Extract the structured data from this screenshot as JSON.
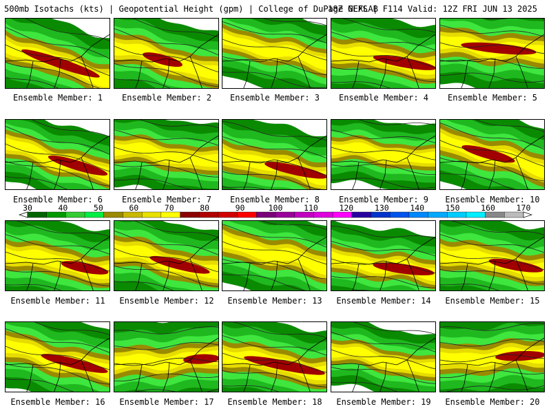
{
  "header": {
    "left": "500mb Isotachs (kts) | Geopotential Height (gpm) | College of DuPage NEXLAB",
    "right": "18Z GEFS | F114 Valid: 12Z FRI JUN 13 2025"
  },
  "panels": [
    {
      "label": "Ensemble Member: 1"
    },
    {
      "label": "Ensemble Member: 2"
    },
    {
      "label": "Ensemble Member: 3"
    },
    {
      "label": "Ensemble Member: 4"
    },
    {
      "label": "Ensemble Member: 5"
    },
    {
      "label": "Ensemble Member: 6"
    },
    {
      "label": "Ensemble Member: 7"
    },
    {
      "label": "Ensemble Member: 8"
    },
    {
      "label": "Ensemble Member: 9"
    },
    {
      "label": "Ensemble Member: 10"
    },
    {
      "label": "Ensemble Member: 11"
    },
    {
      "label": "Ensemble Member: 12"
    },
    {
      "label": "Ensemble Member: 13"
    },
    {
      "label": "Ensemble Member: 14"
    },
    {
      "label": "Ensemble Member: 15"
    },
    {
      "label": "Ensemble Member: 16"
    },
    {
      "label": "Ensemble Member: 17"
    },
    {
      "label": "Ensemble Member: 18"
    },
    {
      "label": "Ensemble Member: 19"
    },
    {
      "label": "Ensemble Member: 20"
    }
  ],
  "colorbar": {
    "ticks": [
      "30",
      "40",
      "50",
      "60",
      "70",
      "80",
      "90",
      "100",
      "110",
      "120",
      "130",
      "140",
      "150",
      "160",
      "170"
    ],
    "colors": [
      "#006400",
      "#009900",
      "#33cc33",
      "#00ee44",
      "#9a8a00",
      "#c8b800",
      "#e8e000",
      "#ffff00",
      "#8b0000",
      "#b00000",
      "#d00000",
      "#ff0000",
      "#7a007a",
      "#9a009a",
      "#c000c0",
      "#dd00dd",
      "#ff00ff",
      "#2a00a0",
      "#0033cc",
      "#0055ee",
      "#0088ff",
      "#00aaff",
      "#00ccff",
      "#00eeff",
      "#888888",
      "#bbbbbb"
    ]
  }
}
